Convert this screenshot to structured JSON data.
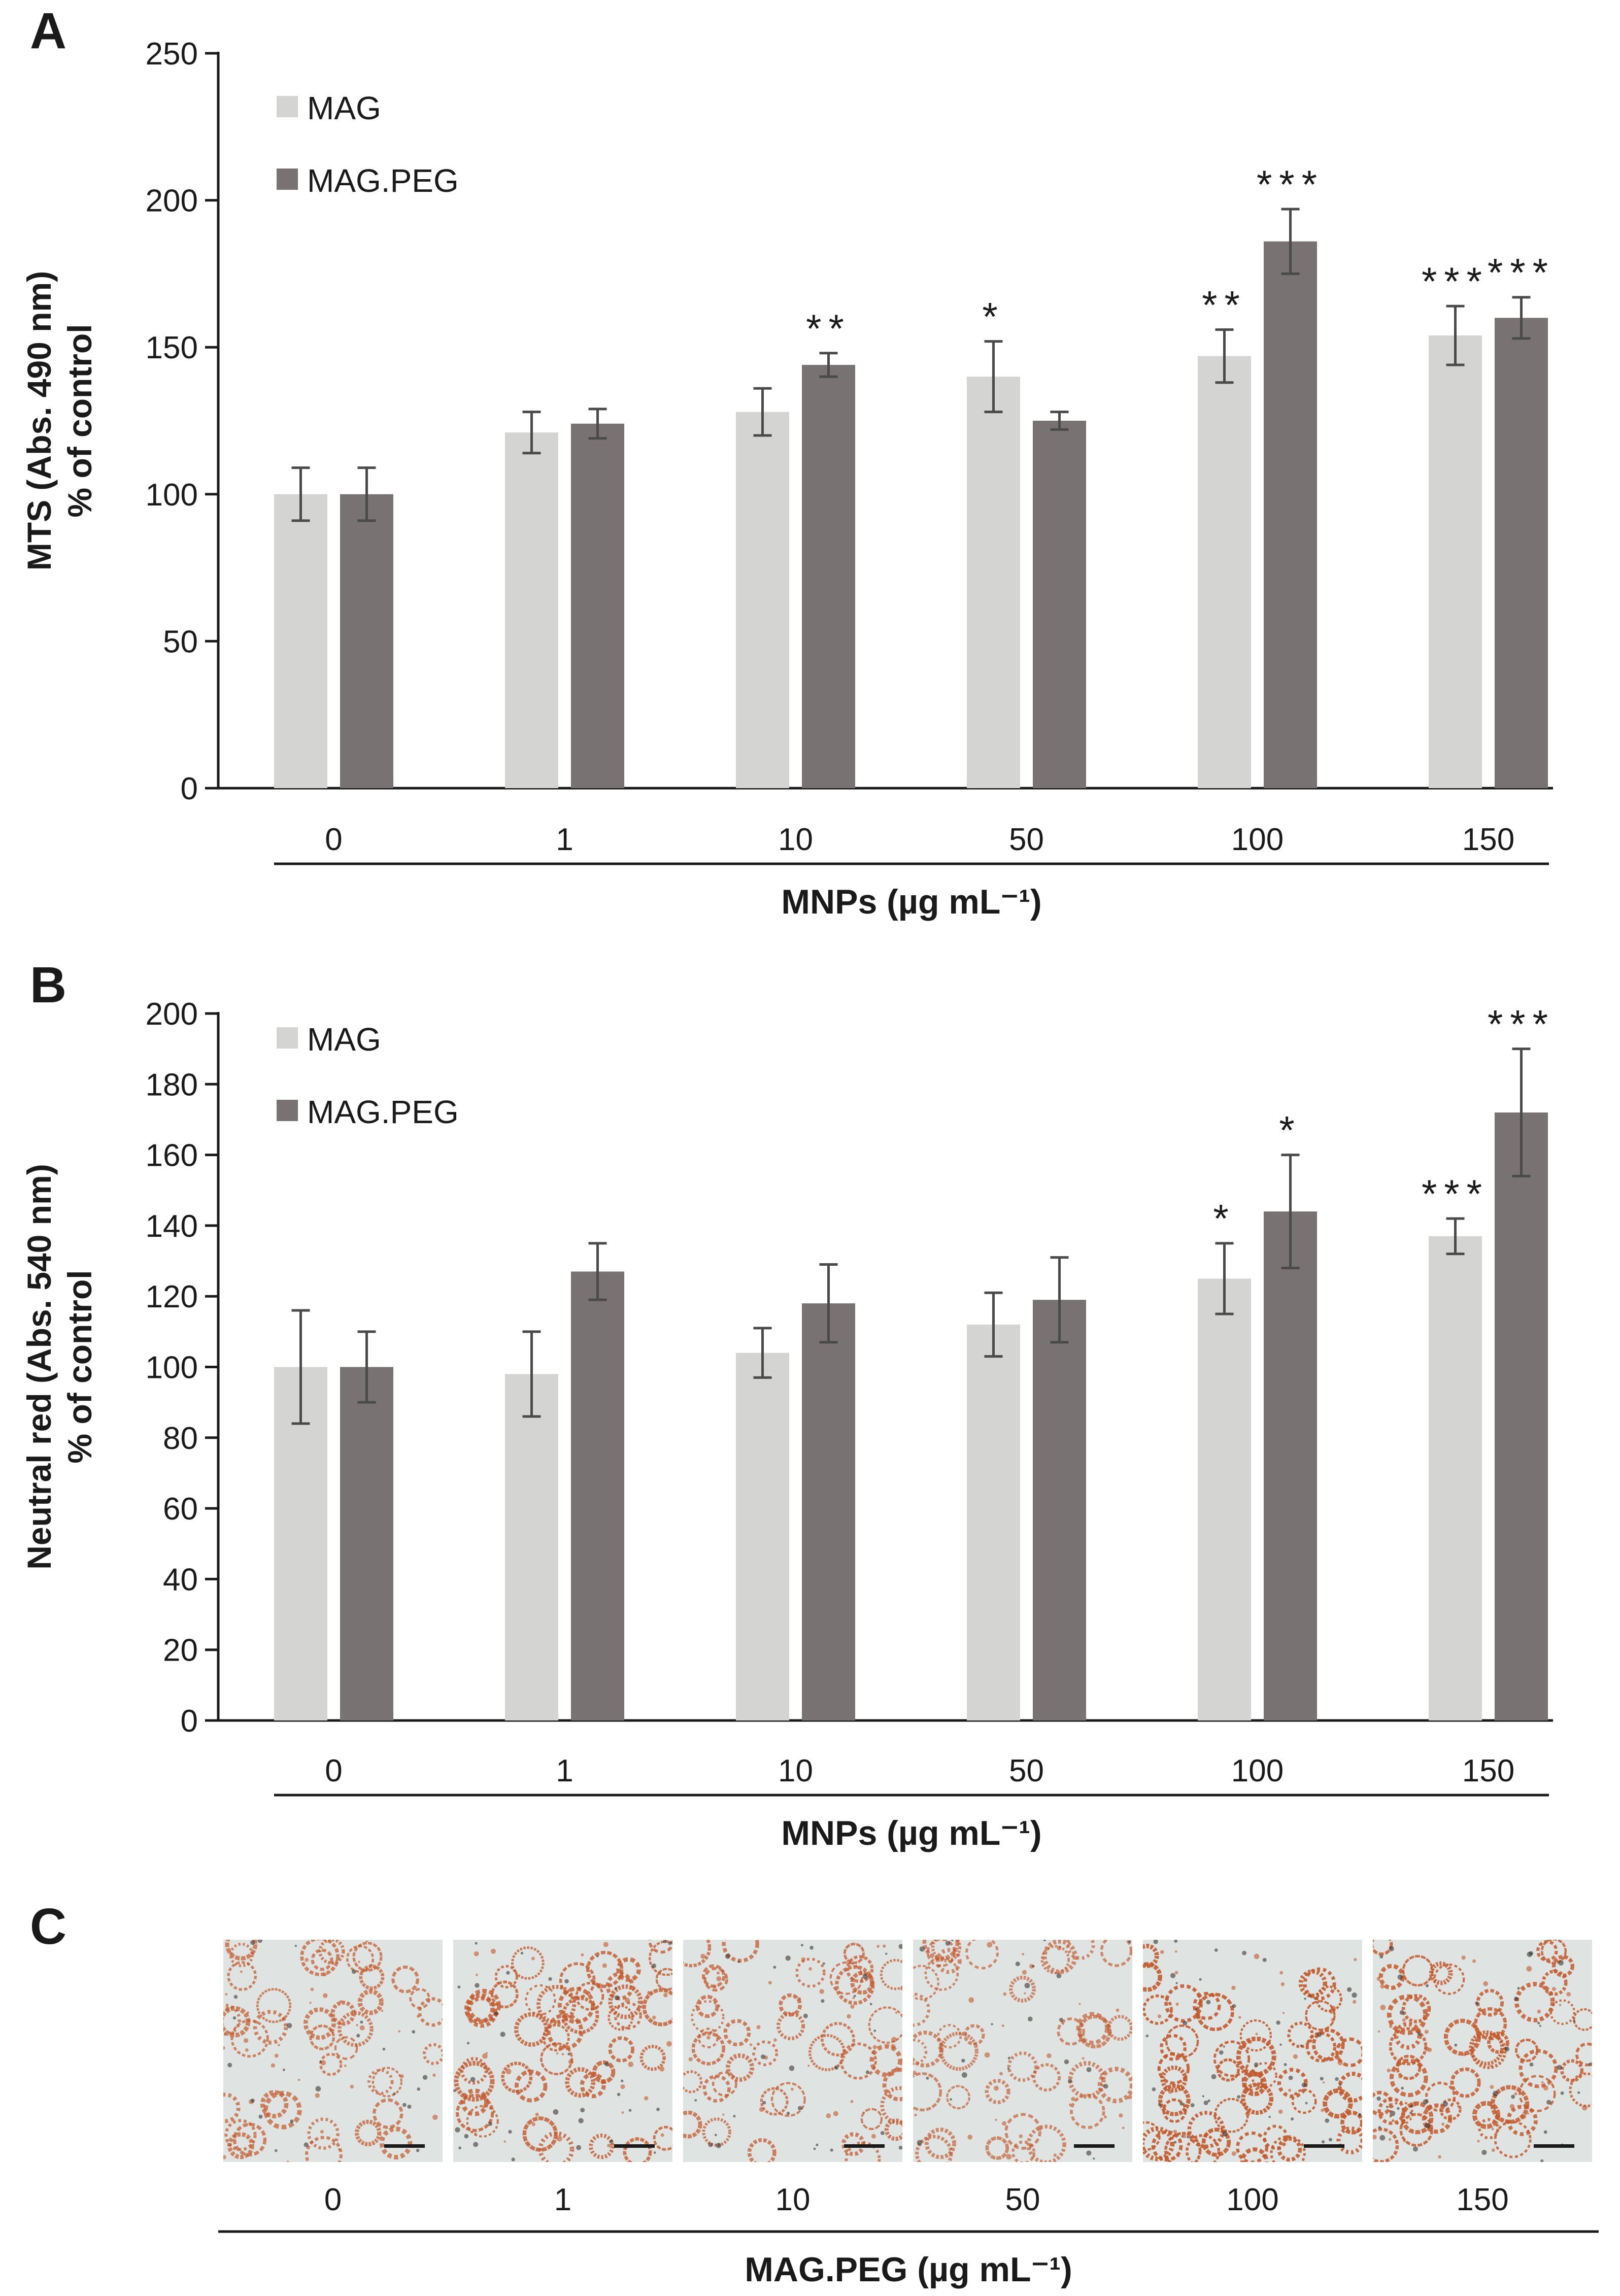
{
  "colors": {
    "mag": "#d4d4d2",
    "mag_peg": "#787272",
    "axis": "#1a1a1a",
    "error_bar": "#4a4a4a",
    "micrograph_bg": "#dfe3e2",
    "cell_stain": "#c2582a"
  },
  "chart_data": [
    {
      "panel_label": "A",
      "type": "bar",
      "categories": [
        "0",
        "1",
        "10",
        "50",
        "100",
        "150"
      ],
      "ylabel_line1": "MTS (Abs. 490 nm)",
      "ylabel_line2": "% of control",
      "xlabel": "MNPs (µg mL⁻¹)",
      "ylim": [
        0,
        250
      ],
      "yticks": [
        0,
        50,
        100,
        150,
        200,
        250
      ],
      "legend_position": "top-left",
      "series": [
        {
          "name": "MAG",
          "values": [
            100,
            121,
            128,
            140,
            147,
            154
          ],
          "errors": [
            9,
            7,
            8,
            12,
            9,
            10
          ],
          "significance": [
            "",
            "",
            "",
            "*",
            "**",
            "***"
          ]
        },
        {
          "name": "MAG.PEG",
          "values": [
            100,
            124,
            144,
            125,
            186,
            160
          ],
          "errors": [
            9,
            5,
            4,
            3,
            11,
            7
          ],
          "significance": [
            "",
            "",
            "**",
            "",
            "***",
            "***"
          ]
        }
      ]
    },
    {
      "panel_label": "B",
      "type": "bar",
      "categories": [
        "0",
        "1",
        "10",
        "50",
        "100",
        "150"
      ],
      "ylabel_line1": "Neutral red (Abs. 540 nm)",
      "ylabel_line2": "% of control",
      "xlabel": "MNPs (µg mL⁻¹)",
      "ylim": [
        0,
        200
      ],
      "yticks": [
        0,
        20,
        40,
        60,
        80,
        100,
        120,
        140,
        160,
        180,
        200
      ],
      "legend_position": "top-left",
      "series": [
        {
          "name": "MAG",
          "values": [
            100,
            98,
            104,
            112,
            125,
            137
          ],
          "errors": [
            16,
            12,
            7,
            9,
            10,
            5
          ],
          "significance": [
            "",
            "",
            "",
            "",
            "*",
            "***"
          ]
        },
        {
          "name": "MAG.PEG",
          "values": [
            100,
            127,
            118,
            119,
            144,
            172
          ],
          "errors": [
            10,
            8,
            11,
            12,
            16,
            18
          ],
          "significance": [
            "",
            "",
            "",
            "",
            "*",
            "***"
          ]
        }
      ]
    }
  ],
  "panel_c": {
    "panel_label": "C",
    "concentrations": [
      "0",
      "1",
      "10",
      "50",
      "100",
      "150"
    ],
    "cell_density": [
      0.55,
      0.75,
      0.6,
      0.45,
      0.95,
      0.85
    ],
    "xlabel": "MAG.PEG (µg mL⁻¹)"
  }
}
